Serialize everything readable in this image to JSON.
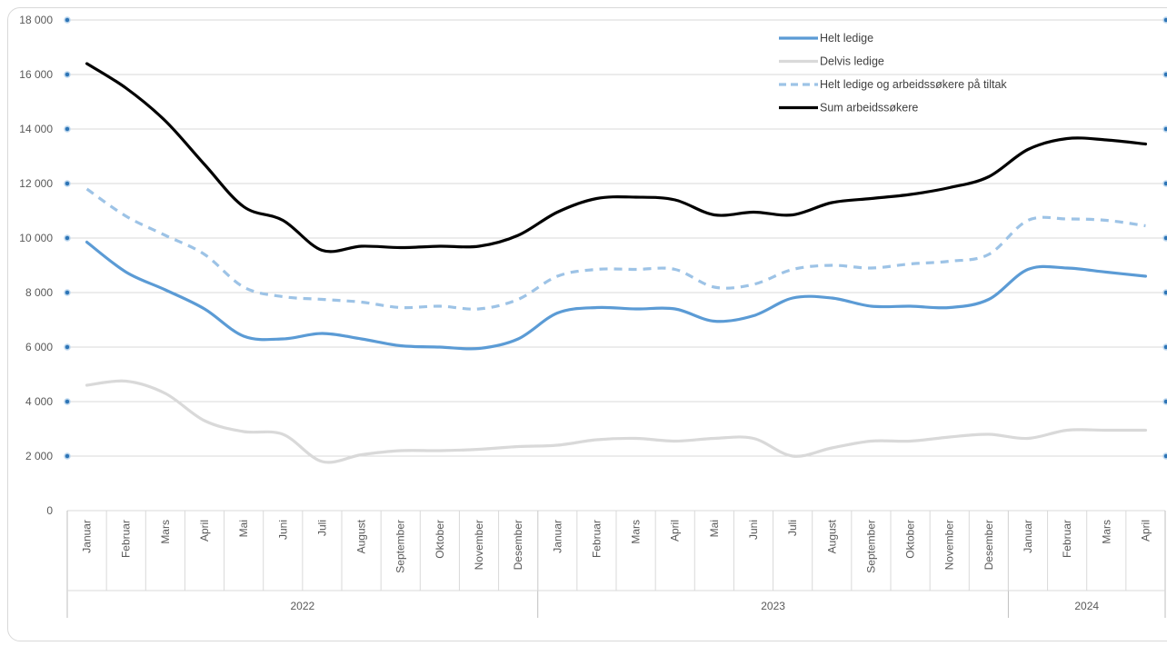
{
  "chart_data": {
    "type": "line",
    "title": "",
    "xlabel": "",
    "ylabel": "",
    "ylim": [
      0,
      18000
    ],
    "yticks": [
      "0",
      "2 000",
      "4 000",
      "6 000",
      "8 000",
      "10 000",
      "12 000",
      "14 000",
      "16 000",
      "18 000"
    ],
    "grid": true,
    "legend_position": "top-right",
    "categories": [
      "Januar",
      "Februar",
      "Mars",
      "April",
      "Mai",
      "Juni",
      "Juli",
      "August",
      "September",
      "Oktober",
      "November",
      "Desember",
      "Januar",
      "Februar",
      "Mars",
      "April",
      "Mai",
      "Juni",
      "Juli",
      "August",
      "September",
      "Oktober",
      "November",
      "Desember",
      "Januar",
      "Februar",
      "Mars",
      "April"
    ],
    "year_groups": [
      {
        "label": "2022",
        "count": 12
      },
      {
        "label": "2023",
        "count": 12
      },
      {
        "label": "2024",
        "count": 4
      }
    ],
    "series": [
      {
        "name": "Helt ledige",
        "color": "#5b9bd5",
        "style": "solid",
        "values": [
          9850,
          8750,
          8100,
          7400,
          6400,
          6300,
          6500,
          6300,
          6050,
          6000,
          5950,
          6300,
          7250,
          7450,
          7400,
          7400,
          6950,
          7150,
          7800,
          7800,
          7500,
          7500,
          7450,
          7750,
          8850,
          8900,
          8750,
          8600
        ]
      },
      {
        "name": "Delvis ledige",
        "color": "#d9d9d9",
        "style": "solid",
        "values": [
          4600,
          4750,
          4300,
          3300,
          2900,
          2800,
          1800,
          2050,
          2200,
          2200,
          2250,
          2350,
          2400,
          2600,
          2650,
          2550,
          2650,
          2650,
          2000,
          2300,
          2550,
          2550,
          2700,
          2800,
          2650,
          2950,
          2950,
          2950
        ]
      },
      {
        "name": "Helt ledige og arbeidssøkere på tiltak",
        "color": "#9dc3e6",
        "style": "dashed",
        "values": [
          11800,
          10800,
          10100,
          9400,
          8200,
          7850,
          7750,
          7650,
          7450,
          7500,
          7400,
          7750,
          8600,
          8850,
          8850,
          8850,
          8200,
          8300,
          8850,
          9000,
          8900,
          9050,
          9150,
          9400,
          10650,
          10700,
          10650,
          10450
        ]
      },
      {
        "name": "Sum arbeidssøkere",
        "color": "#000000",
        "style": "solid",
        "values": [
          16400,
          15500,
          14300,
          12700,
          11150,
          10650,
          9550,
          9700,
          9650,
          9700,
          9700,
          10100,
          10950,
          11450,
          11500,
          11400,
          10850,
          10950,
          10850,
          11300,
          11450,
          11600,
          11850,
          12250,
          13250,
          13650,
          13600,
          13450
        ]
      }
    ]
  }
}
